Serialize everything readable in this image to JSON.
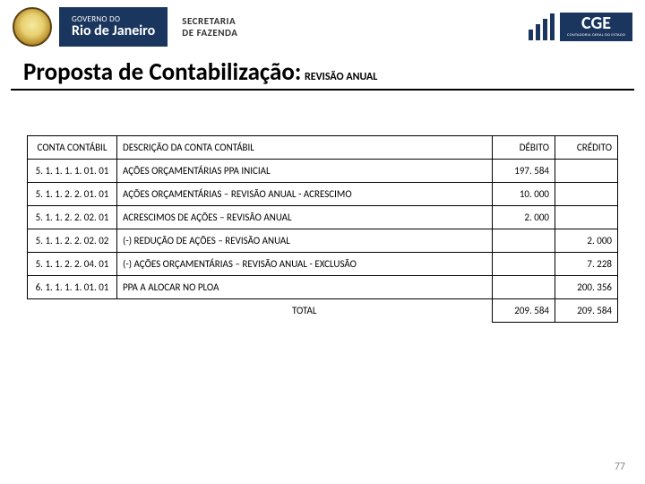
{
  "header": {
    "gov_line1": "GOVERNO DO",
    "gov_line2": "Rio de Janeiro",
    "sec_line1": "SECRETARIA",
    "sec_line2": "DE FAZENDA",
    "cge_big": "CGE",
    "cge_small": "CONTADORIA GERAL DO ESTADO",
    "cge_bars": [
      12,
      18,
      24,
      30
    ]
  },
  "title": {
    "main": "Proposta de Contabilização:",
    "sub": "REVISÃO  ANUAL"
  },
  "table": {
    "columns": [
      "CONTA CONTÁBIL",
      "DESCRIÇÃO DA CONTA CONTÁBIL",
      "DÉBITO",
      "CRÉDITO"
    ],
    "rows": [
      {
        "acct": "5. 1. 1. 1. 1. 01. 01",
        "desc": "AÇÕES ORÇAMENTÁRIAS PPA INICIAL",
        "debit": "197. 584",
        "credit": ""
      },
      {
        "acct": "5. 1. 1. 2. 2. 01. 01",
        "desc": "AÇÕES ORÇAMENTÁRIAS – REVISÃO ANUAL  - ACRESCIMO",
        "debit": "10. 000",
        "credit": ""
      },
      {
        "acct": "5. 1. 1. 2. 2. 02. 01",
        "desc": "ACRESCIMOS DE AÇÕES – REVISÃO ANUAL",
        "debit": "2. 000",
        "credit": ""
      },
      {
        "acct": "5. 1. 1. 2. 2. 02. 02",
        "desc": "(-) REDUÇÃO DE AÇÕES – REVISÃO ANUAL",
        "debit": "",
        "credit": "2. 000"
      },
      {
        "acct": "5. 1. 1. 2. 2. 04. 01",
        "desc": "(-) AÇÕES ORÇAMENTÁRIAS – REVISÃO ANUAL  - EXCLUSÃO",
        "debit": "",
        "credit": "7. 228"
      },
      {
        "acct": "6. 1. 1. 1. 1. 01. 01",
        "desc": "PPA A ALOCAR NO PLOA",
        "debit": "",
        "credit": "200. 356"
      }
    ],
    "total_label": "TOTAL",
    "total_debit": "209. 584",
    "total_credit": "209. 584"
  },
  "page_number": "77",
  "colors": {
    "nav_blue": "#1a355e",
    "border": "#000000",
    "background": "#ffffff",
    "page_num": "#8a8a8a"
  }
}
